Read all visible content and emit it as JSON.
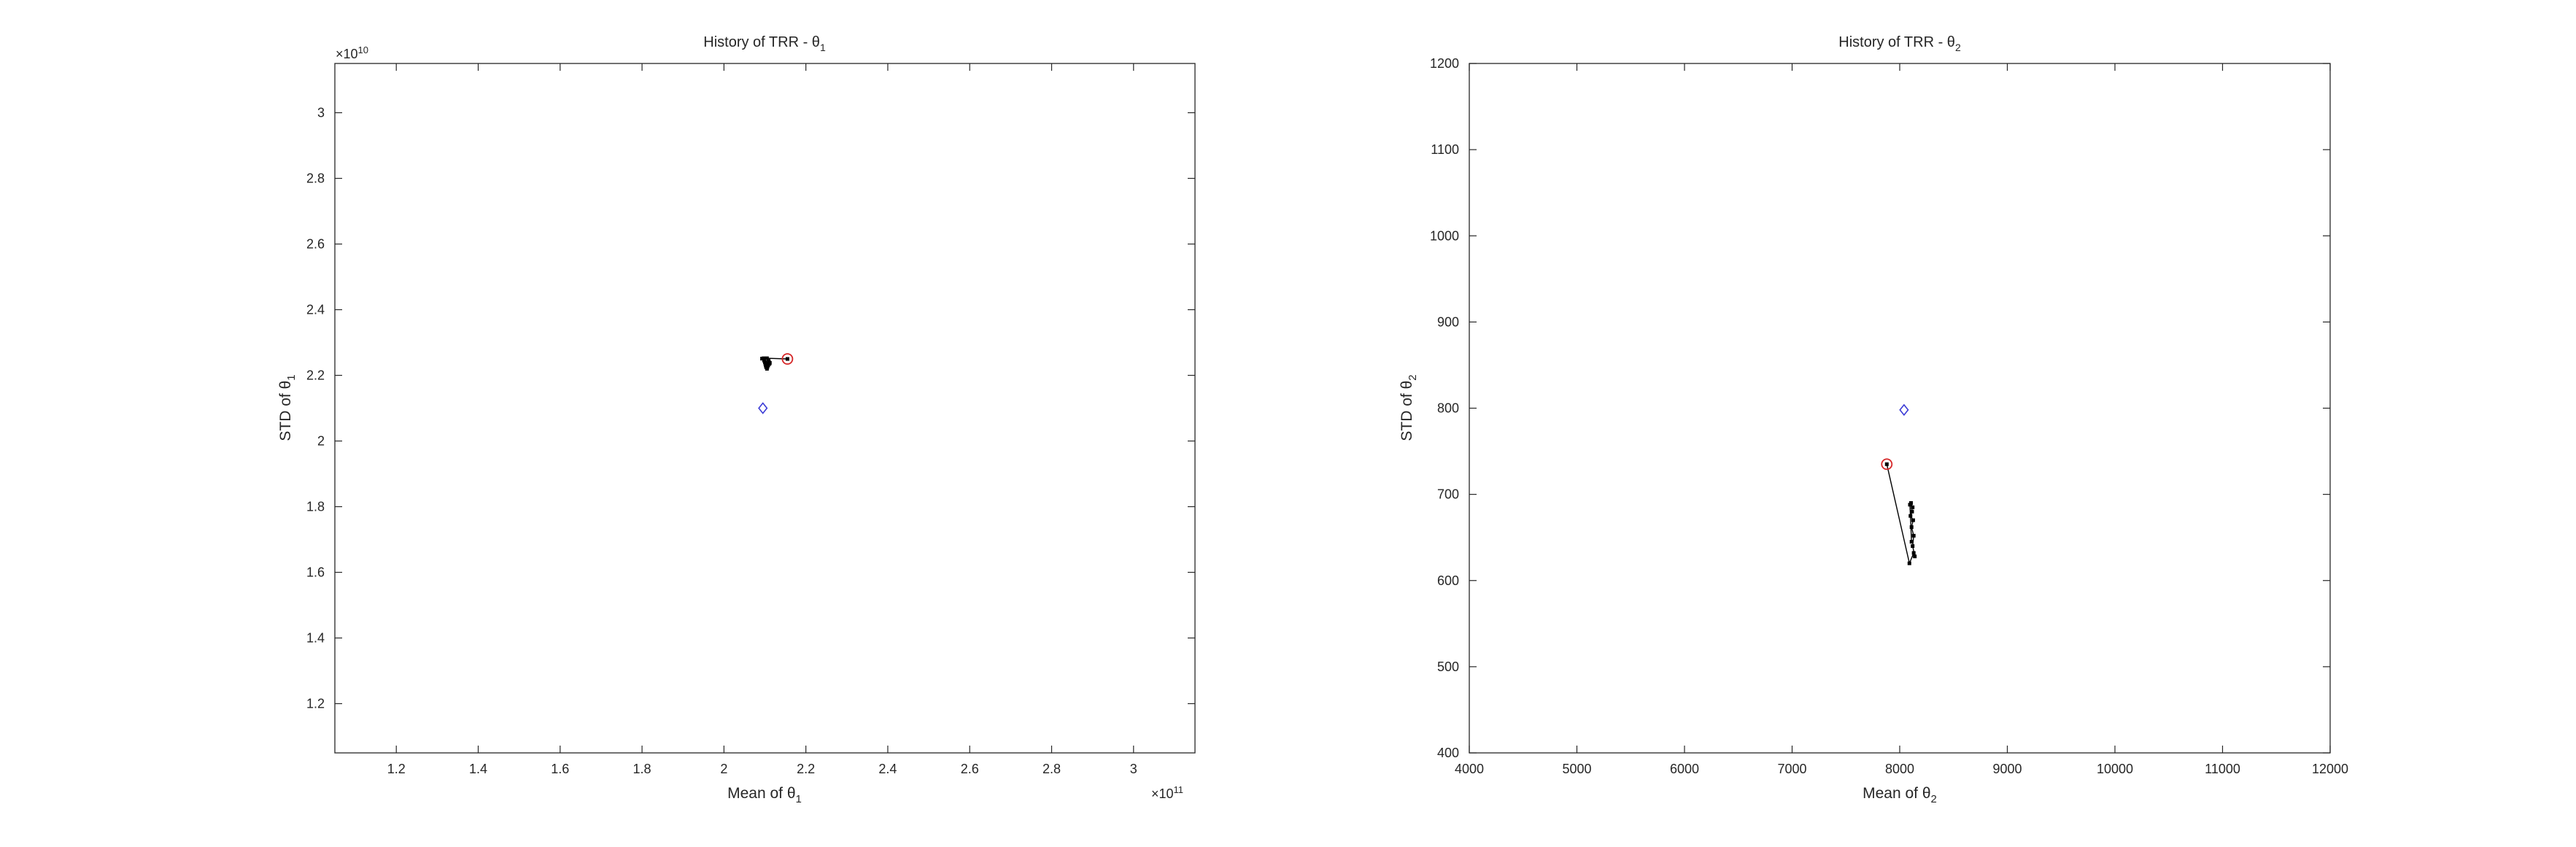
{
  "chart_data": [
    {
      "type": "line",
      "title": "History of TRR - θ",
      "title_sub": "1",
      "xlabel": "Mean of θ",
      "xlabel_sub": "1",
      "ylabel": "STD of θ",
      "ylabel_sub": "1",
      "xlim": [
        1.05,
        3.15
      ],
      "ylim": [
        1.05,
        3.15
      ],
      "x_ticks": [
        1.2,
        1.4,
        1.6,
        1.8,
        2,
        2.2,
        2.4,
        2.6,
        2.8,
        3
      ],
      "y_ticks": [
        1.2,
        1.4,
        1.6,
        1.8,
        2,
        2.2,
        2.4,
        2.6,
        2.8,
        3
      ],
      "x_tick_labels": [
        "1.2",
        "1.4",
        "1.6",
        "1.8",
        "2",
        "2.2",
        "2.4",
        "2.6",
        "2.8",
        "3"
      ],
      "y_tick_labels": [
        "1.2",
        "1.4",
        "1.6",
        "1.8",
        "2",
        "2.2",
        "2.4",
        "2.6",
        "2.8",
        "3"
      ],
      "x_exponent": "11",
      "y_exponent": "10",
      "grid": false,
      "series": [
        {
          "x": [
            2.155,
            2.105,
            2.097,
            2.093,
            2.098,
            2.1,
            2.101,
            2.102,
            2.103,
            2.105,
            2.106,
            2.107,
            2.108,
            2.109,
            2.11,
            2.111,
            2.112
          ],
          "y": [
            2.25,
            2.252,
            2.252,
            2.251,
            2.245,
            2.24,
            2.235,
            2.23,
            2.225,
            2.22,
            2.225,
            2.235,
            2.23,
            2.245,
            2.24,
            2.235,
            2.238
          ],
          "color": "#000000"
        }
      ],
      "start_point": {
        "x": 2.155,
        "y": 2.25,
        "color": "#d62728"
      },
      "reference_point": {
        "x": 2.095,
        "y": 2.1,
        "color": "#3b3bd6"
      }
    },
    {
      "type": "line",
      "title": "History of TRR - θ",
      "title_sub": "2",
      "xlabel": "Mean of θ",
      "xlabel_sub": "2",
      "ylabel": "STD of θ",
      "ylabel_sub": "2",
      "xlim": [
        4000,
        12000
      ],
      "ylim": [
        400,
        1200
      ],
      "x_ticks": [
        4000,
        5000,
        6000,
        7000,
        8000,
        9000,
        10000,
        11000,
        12000
      ],
      "y_ticks": [
        400,
        500,
        600,
        700,
        800,
        900,
        1000,
        1100,
        1200
      ],
      "x_tick_labels": [
        "4000",
        "5000",
        "6000",
        "7000",
        "8000",
        "9000",
        "10000",
        "11000",
        "12000"
      ],
      "y_tick_labels": [
        "400",
        "500",
        "600",
        "700",
        "800",
        "900",
        "1000",
        "1100",
        "1200"
      ],
      "grid": false,
      "series": [
        {
          "x": [
            7880,
            8090,
            8130,
            8140,
            8120,
            8130,
            8110,
            8125,
            8100,
            8115,
            8105,
            8120,
            8095,
            8110
          ],
          "y": [
            735,
            620,
            632,
            628,
            640,
            652,
            662,
            670,
            675,
            680,
            690,
            685,
            688,
            645
          ],
          "color": "#000000"
        }
      ],
      "start_point": {
        "x": 7880,
        "y": 735,
        "color": "#d62728"
      },
      "reference_point": {
        "x": 8040,
        "y": 798,
        "color": "#3b3bd6"
      }
    }
  ]
}
